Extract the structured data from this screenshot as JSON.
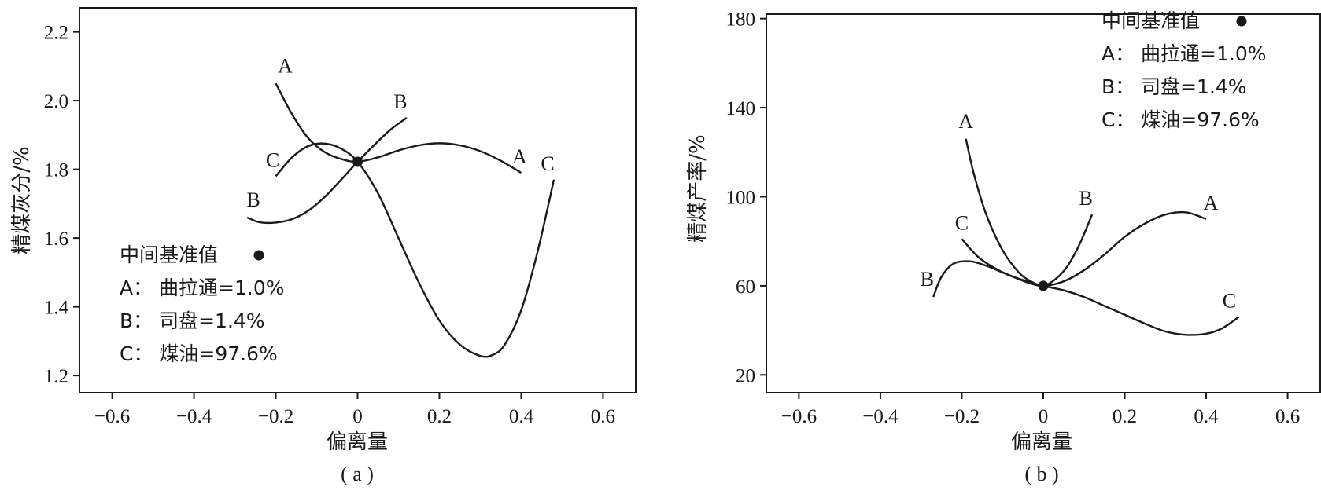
{
  "chart_data": [
    {
      "type": "line",
      "panel_caption": "( a )",
      "xlabel": "偏离量",
      "ylabel": "精煤灰分/%",
      "xlim": [
        -0.68,
        0.68
      ],
      "ylim": [
        1.15,
        2.27
      ],
      "xticks": [
        -0.6,
        -0.4,
        -0.2,
        0,
        0.2,
        0.4,
        0.6
      ],
      "xtick_labels": [
        "−0.6",
        "−0.4",
        "−0.2",
        "0",
        "0.2",
        "0.4",
        "0.6"
      ],
      "yticks": [
        1.2,
        1.4,
        1.6,
        1.8,
        2.0,
        2.2
      ],
      "ytick_labels": [
        "1.2",
        "1.4",
        "1.6",
        "1.8",
        "2.0",
        "2.2"
      ],
      "grid": false,
      "legend_placement": "lower-left",
      "legend": {
        "title": "中间基准值",
        "items": [
          "A：  曲拉通=1.0%",
          "B：  司盘=1.4%",
          "C：  煤油=97.6%"
        ]
      },
      "center_point": {
        "x": 0,
        "y": 1.822
      },
      "series": [
        {
          "name": "A",
          "x": [
            -0.2,
            -0.16,
            -0.12,
            -0.08,
            -0.04,
            0,
            0.05,
            0.1,
            0.15,
            0.2,
            0.25,
            0.3,
            0.35,
            0.4
          ],
          "values": [
            2.05,
            1.96,
            1.89,
            1.85,
            1.83,
            1.822,
            1.835,
            1.855,
            1.87,
            1.876,
            1.87,
            1.853,
            1.825,
            1.79
          ],
          "start_label": "A",
          "end_label": "A"
        },
        {
          "name": "B",
          "x": [
            -0.27,
            -0.24,
            -0.2,
            -0.16,
            -0.12,
            -0.08,
            -0.04,
            0,
            0.04,
            0.08,
            0.12
          ],
          "values": [
            1.66,
            1.646,
            1.645,
            1.655,
            1.68,
            1.72,
            1.77,
            1.822,
            1.87,
            1.915,
            1.95
          ],
          "start_label": "B",
          "end_label": "B"
        },
        {
          "name": "C",
          "x": [
            -0.2,
            -0.16,
            -0.12,
            -0.08,
            -0.04,
            0,
            0.05,
            0.1,
            0.15,
            0.2,
            0.25,
            0.3,
            0.33,
            0.36,
            0.4,
            0.44,
            0.48
          ],
          "values": [
            1.78,
            1.835,
            1.868,
            1.875,
            1.86,
            1.822,
            1.73,
            1.6,
            1.47,
            1.36,
            1.29,
            1.257,
            1.26,
            1.29,
            1.39,
            1.56,
            1.77
          ],
          "start_label": "C",
          "end_label": "C"
        }
      ]
    },
    {
      "type": "line",
      "panel_caption": "( b )",
      "xlabel": "偏离量",
      "ylabel": "精煤产率/%",
      "xlim": [
        -0.68,
        0.68
      ],
      "ylim": [
        12,
        182
      ],
      "xticks": [
        -0.6,
        -0.4,
        -0.2,
        0,
        0.2,
        0.4,
        0.6
      ],
      "xtick_labels": [
        "−0.6",
        "−0.4",
        "−0.2",
        "0",
        "0.2",
        "0.4",
        "0.6"
      ],
      "yticks": [
        20,
        60,
        100,
        140,
        180
      ],
      "ytick_labels": [
        "20",
        "60",
        "100",
        "140",
        "180"
      ],
      "grid": false,
      "legend_placement": "top-right",
      "legend": {
        "title": "中间基准值",
        "items": [
          "A：  曲拉通=1.0%",
          "B：  司盘=1.4%",
          "C：  煤油=97.6%"
        ]
      },
      "center_point": {
        "x": 0,
        "y": 60
      },
      "series": [
        {
          "name": "A",
          "x": [
            -0.19,
            -0.17,
            -0.14,
            -0.1,
            -0.06,
            -0.03,
            0,
            0.05,
            0.1,
            0.15,
            0.2,
            0.25,
            0.3,
            0.35,
            0.4
          ],
          "values": [
            126,
            110,
            92,
            76,
            66,
            62,
            60,
            62,
            67,
            74,
            82,
            88,
            92,
            93,
            90
          ],
          "start_label": "A",
          "end_label": "A"
        },
        {
          "name": "B",
          "x": [
            -0.27,
            -0.25,
            -0.22,
            -0.18,
            -0.14,
            -0.1,
            -0.06,
            -0.03,
            0,
            0.03,
            0.06,
            0.09,
            0.12
          ],
          "values": [
            55,
            64,
            70,
            71,
            69,
            66,
            63,
            61,
            60,
            63,
            69,
            79,
            92
          ],
          "start_label": "B",
          "end_label": "B"
        },
        {
          "name": "C",
          "x": [
            -0.2,
            -0.16,
            -0.12,
            -0.08,
            -0.04,
            0,
            0.05,
            0.1,
            0.15,
            0.2,
            0.25,
            0.3,
            0.35,
            0.4,
            0.44,
            0.48
          ],
          "values": [
            81,
            73,
            68,
            64.5,
            62,
            60,
            58,
            55,
            51,
            47,
            43,
            39.5,
            38,
            38.5,
            41,
            46
          ],
          "start_label": "C",
          "end_label": "C"
        }
      ]
    }
  ]
}
